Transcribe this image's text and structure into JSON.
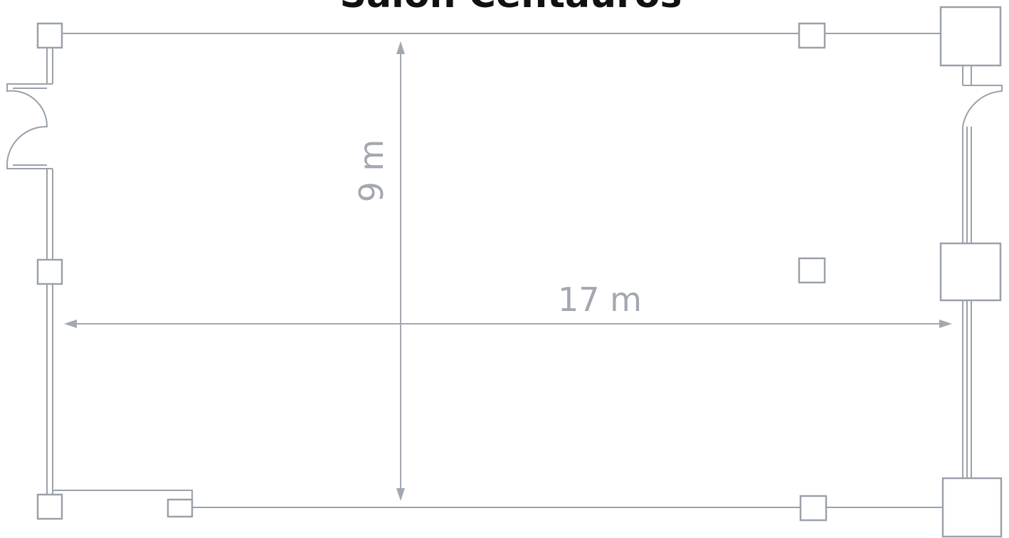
{
  "title": "Salón Centauros",
  "dimensions": {
    "height": "9 m",
    "width": "17 m"
  }
}
